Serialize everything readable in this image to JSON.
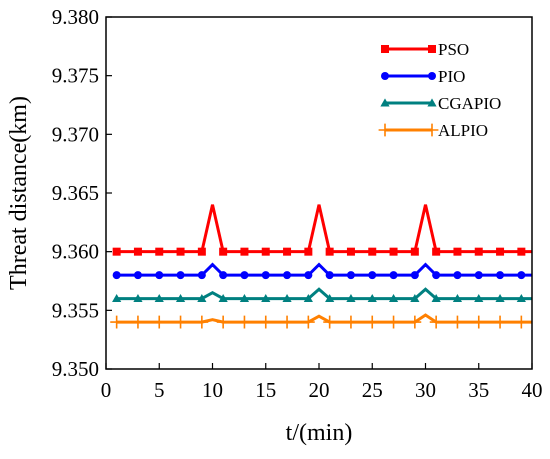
{
  "chart_data": {
    "type": "line",
    "title": "",
    "xlabel": "t/(min)",
    "ylabel": "Threat distance(km)",
    "xlim": [
      0,
      40
    ],
    "ylim": [
      9.35,
      9.38
    ],
    "x_ticks": [
      "0",
      "5",
      "10",
      "15",
      "20",
      "25",
      "30",
      "35",
      "40"
    ],
    "y_ticks": [
      "9.350",
      "9.355",
      "9.360",
      "9.365",
      "9.370",
      "9.375",
      "9.380"
    ],
    "grid": false,
    "legend_position": "top-right",
    "x": [
      1,
      2,
      3,
      4,
      5,
      6,
      7,
      8,
      9,
      10,
      11,
      12,
      13,
      14,
      15,
      16,
      17,
      18,
      19,
      20,
      21,
      22,
      23,
      24,
      25,
      26,
      27,
      28,
      29,
      30,
      31,
      32,
      33,
      34,
      35,
      36,
      37,
      38,
      39,
      40
    ],
    "series": [
      {
        "name": "PSO",
        "color": "#ff0000",
        "marker": "square",
        "values": [
          9.36,
          9.36,
          9.36,
          9.36,
          9.36,
          9.36,
          9.36,
          9.36,
          9.36,
          9.364,
          9.36,
          9.36,
          9.36,
          9.36,
          9.36,
          9.36,
          9.36,
          9.36,
          9.36,
          9.364,
          9.36,
          9.36,
          9.36,
          9.36,
          9.36,
          9.36,
          9.36,
          9.36,
          9.36,
          9.364,
          9.36,
          9.36,
          9.36,
          9.36,
          9.36,
          9.36,
          9.36,
          9.36,
          9.36,
          9.36
        ]
      },
      {
        "name": "PIO",
        "color": "#0000ff",
        "marker": "circle",
        "values": [
          9.358,
          9.358,
          9.358,
          9.358,
          9.358,
          9.358,
          9.358,
          9.358,
          9.358,
          9.3589,
          9.358,
          9.358,
          9.358,
          9.358,
          9.358,
          9.358,
          9.358,
          9.358,
          9.358,
          9.3589,
          9.358,
          9.358,
          9.358,
          9.358,
          9.358,
          9.358,
          9.358,
          9.358,
          9.358,
          9.3589,
          9.358,
          9.358,
          9.358,
          9.358,
          9.358,
          9.358,
          9.358,
          9.358,
          9.358,
          9.358
        ]
      },
      {
        "name": "CGAPIO",
        "color": "#008080",
        "marker": "triangle",
        "values": [
          9.356,
          9.356,
          9.356,
          9.356,
          9.356,
          9.356,
          9.356,
          9.356,
          9.356,
          9.3565,
          9.356,
          9.356,
          9.356,
          9.356,
          9.356,
          9.356,
          9.356,
          9.356,
          9.356,
          9.3568,
          9.356,
          9.356,
          9.356,
          9.356,
          9.356,
          9.356,
          9.356,
          9.356,
          9.356,
          9.3568,
          9.356,
          9.356,
          9.356,
          9.356,
          9.356,
          9.356,
          9.356,
          9.356,
          9.356,
          9.356
        ]
      },
      {
        "name": "ALPIO",
        "color": "#ff8000",
        "marker": "plus",
        "values": [
          9.354,
          9.354,
          9.354,
          9.354,
          9.354,
          9.354,
          9.354,
          9.354,
          9.354,
          9.3542,
          9.354,
          9.354,
          9.354,
          9.354,
          9.354,
          9.354,
          9.354,
          9.354,
          9.354,
          9.3545,
          9.354,
          9.354,
          9.354,
          9.354,
          9.354,
          9.354,
          9.354,
          9.354,
          9.354,
          9.3546,
          9.354,
          9.354,
          9.354,
          9.354,
          9.354,
          9.354,
          9.354,
          9.354,
          9.354,
          9.354
        ]
      }
    ]
  }
}
